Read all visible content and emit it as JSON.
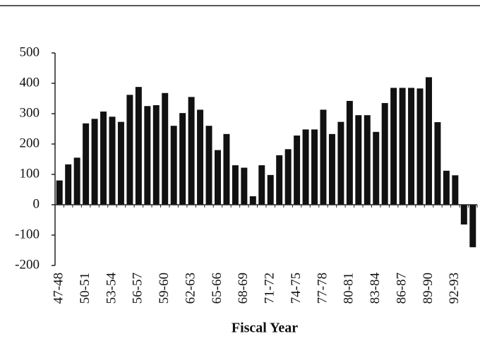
{
  "chart_data": {
    "type": "bar",
    "x_label": "Fiscal Year",
    "categories": [
      "47-48",
      null,
      null,
      "50-51",
      null,
      null,
      "53-54",
      null,
      null,
      "56-57",
      null,
      null,
      "59-60",
      null,
      null,
      "62-63",
      null,
      null,
      "65-66",
      null,
      null,
      "68-69",
      null,
      null,
      "71-72",
      null,
      null,
      "74-75",
      null,
      null,
      "77-78",
      null,
      null,
      "80-81",
      null,
      null,
      "83-84",
      null,
      null,
      "86-87",
      null,
      null,
      "89-90",
      null,
      null,
      "92-93",
      null,
      null
    ],
    "values": [
      80,
      133,
      155,
      268,
      283,
      307,
      290,
      273,
      362,
      388,
      325,
      328,
      368,
      260,
      302,
      355,
      313,
      260,
      180,
      233,
      130,
      122,
      28,
      130,
      98,
      163,
      183,
      228,
      248,
      248,
      313,
      233,
      273,
      342,
      295,
      295,
      240,
      335,
      385,
      385,
      385,
      383,
      420,
      272,
      112,
      97,
      -65,
      -140
    ],
    "color": "#111111",
    "ylim": [
      -200,
      500
    ],
    "yticks": [
      -200,
      -100,
      0,
      100,
      200,
      300,
      400,
      500
    ]
  }
}
